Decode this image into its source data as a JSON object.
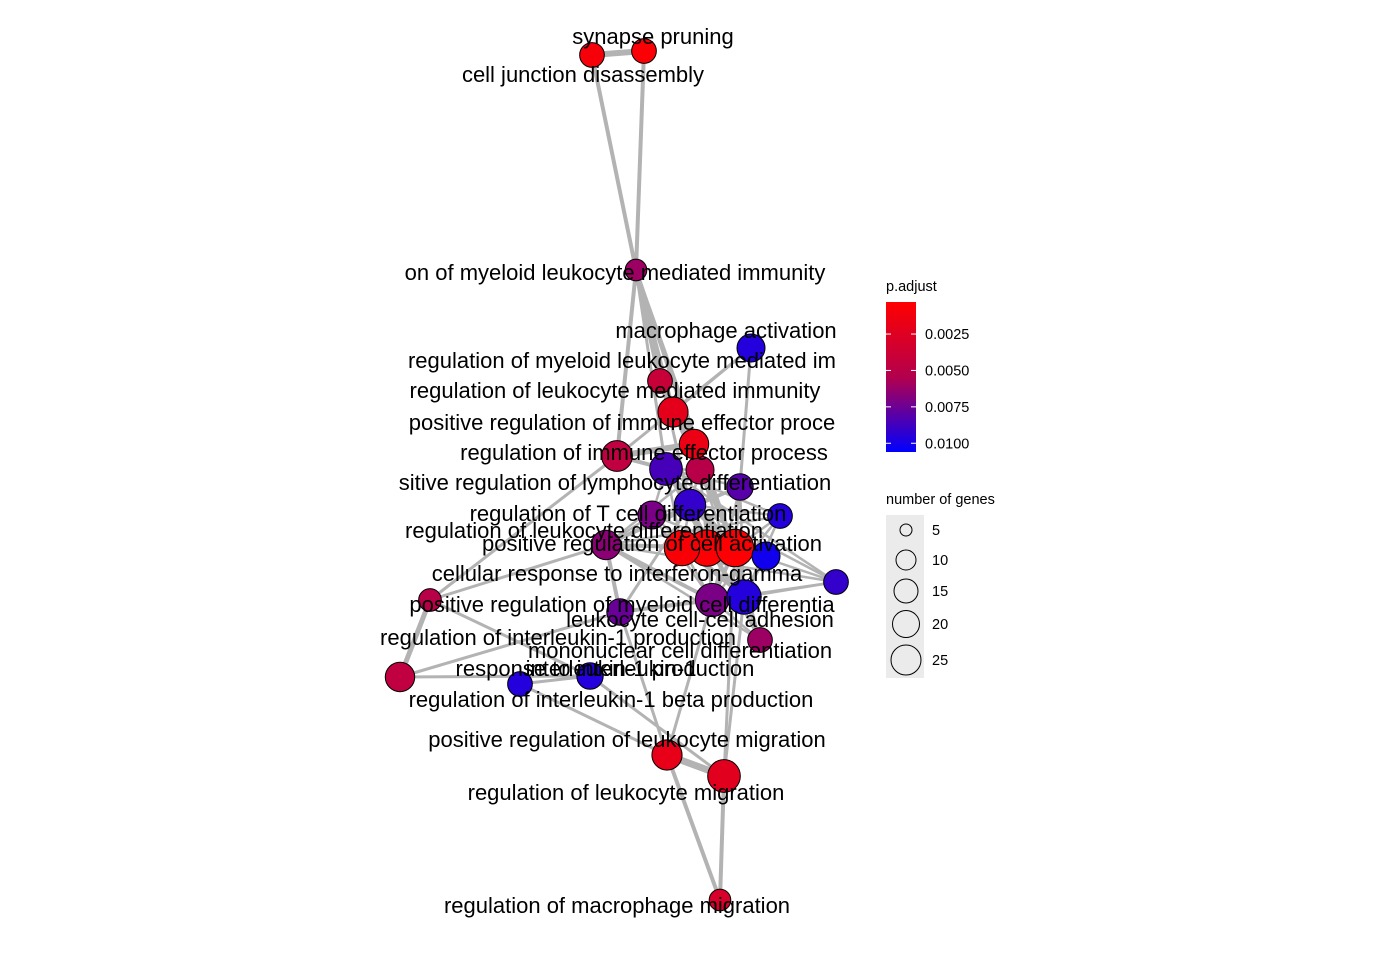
{
  "network": {
    "nodes": [
      {
        "id": "synapse-pruning",
        "label": "synapse pruning",
        "p_adjust": 0.0005,
        "genes": 8
      },
      {
        "id": "cell-junction-disassembly",
        "label": "cell junction disassembly",
        "p_adjust": 0.0008,
        "genes": 8
      },
      {
        "id": "pos-reg-myeloid-mediated",
        "label": "on of myeloid leukocyte mediated immunity",
        "p_adjust": 0.006,
        "genes": 5
      },
      {
        "id": "macrophage-activation",
        "label": "macrophage activation",
        "p_adjust": 0.0095,
        "genes": 12
      },
      {
        "id": "reg-myeloid-mediated",
        "label": "regulation of myeloid leukocyte mediated im",
        "p_adjust": 0.004,
        "genes": 8
      },
      {
        "id": "reg-leukocyte-mediated",
        "label": "regulation of leukocyte mediated immunity",
        "p_adjust": 0.002,
        "genes": 15
      },
      {
        "id": "pos-reg-immune-effector",
        "label": "positive regulation of immune effector proce",
        "p_adjust": 0.0015,
        "genes": 14
      },
      {
        "id": "reg-immune-effector",
        "label": "regulation of immune effector process",
        "p_adjust": 0.0045,
        "genes": 16
      },
      {
        "id": "pos-reg-lymphocyte-diff",
        "label": "sitive regulation of lymphocyte differentiation",
        "p_adjust": 0.0085,
        "genes": 19
      },
      {
        "id": "reg-t-cell-diff",
        "label": "regulation of T cell differentiation",
        "p_adjust": 0.009,
        "genes": 17
      },
      {
        "id": "reg-leukocyte-diff",
        "label": "regulation of leukocyte differentiation",
        "p_adjust": 0.0065,
        "genes": 14
      },
      {
        "id": "pos-reg-cell-activation",
        "label": "positive regulation of cell activation",
        "p_adjust": 0.0004,
        "genes": 28
      },
      {
        "id": "cellular-response-ifng",
        "label": "cellular response to interferon-gamma",
        "p_adjust": 0.01,
        "genes": 12
      },
      {
        "id": "pos-reg-myeloid-diff",
        "label": "positive regulation of myeloid cell differentia",
        "p_adjust": 0.007,
        "genes": 20
      },
      {
        "id": "leukocyte-adhesion",
        "label": "leukocyte cell-cell adhesion",
        "p_adjust": 0.0095,
        "genes": 22
      },
      {
        "id": "reg-il1-production",
        "label": "regulation of interleukin-1 production",
        "p_adjust": 0.005,
        "genes": 6
      },
      {
        "id": "mononuclear-diff",
        "label": "mononuclear cell differentiation",
        "p_adjust": 0.0075,
        "genes": 10
      },
      {
        "id": "response-il1",
        "label": "response to interleukin-1",
        "p_adjust": 0.0045,
        "genes": 14
      },
      {
        "id": "il1-production",
        "label": "interleukin-1 production",
        "p_adjust": 0.0095,
        "genes": 10
      },
      {
        "id": "reg-il1b-production",
        "label": "regulation of interleukin-1 beta production",
        "p_adjust": 0.0095,
        "genes": 8
      },
      {
        "id": "pos-reg-leukocyte-migration",
        "label": "positive regulation of leukocyte migration",
        "p_adjust": 0.0018,
        "genes": 15
      },
      {
        "id": "reg-leukocyte-migration",
        "label": "regulation of leukocyte migration",
        "p_adjust": 0.0022,
        "genes": 19
      },
      {
        "id": "reg-macrophage-migration",
        "label": "regulation of macrophage migration",
        "p_adjust": 0.003,
        "genes": 5
      }
    ]
  },
  "legend": {
    "color": {
      "title": "p.adjust",
      "ticks": [
        {
          "value": 0.0025,
          "label": "0.0025"
        },
        {
          "value": 0.005,
          "label": "0.0050"
        },
        {
          "value": 0.0075,
          "label": "0.0075"
        },
        {
          "value": 0.01,
          "label": "0.0100"
        }
      ],
      "low_color": "#ff0000",
      "high_color": "#0000ff"
    },
    "size": {
      "title": "number of genes",
      "entries": [
        {
          "value": 5,
          "label": "5"
        },
        {
          "value": 10,
          "label": "10"
        },
        {
          "value": 15,
          "label": "15"
        },
        {
          "value": 20,
          "label": "20"
        },
        {
          "value": 25,
          "label": "25"
        }
      ]
    }
  },
  "colors": {
    "edge": "#b3b3b3",
    "node_stroke": "#000000",
    "legend_bg": "#ebebeb"
  }
}
